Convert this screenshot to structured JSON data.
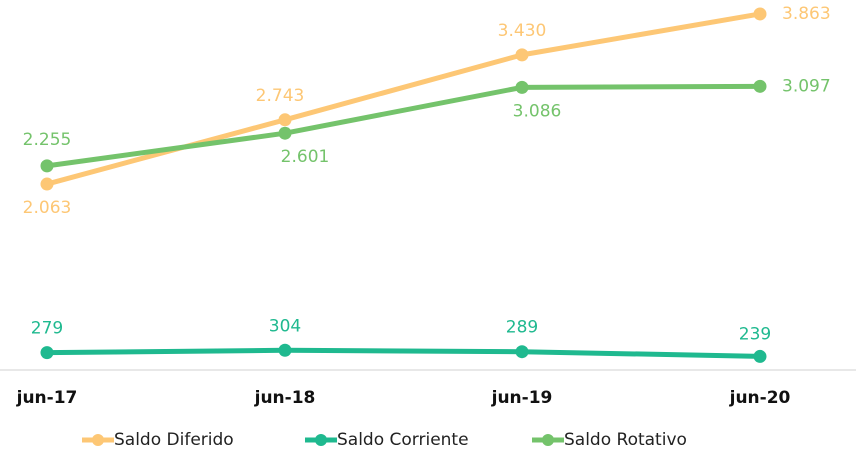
{
  "chart_data": {
    "type": "line",
    "categories": [
      "jun-17",
      "jun-18",
      "jun-19",
      "jun-20"
    ],
    "ylim": [
      0,
      4000
    ],
    "series": [
      {
        "name": "Saldo Diferido",
        "color": "#fdc775",
        "values": [
          2063,
          2743,
          3430,
          3863
        ],
        "value_labels": [
          "2.063",
          "2.743",
          "3.430",
          "3.863"
        ]
      },
      {
        "name": "Saldo Corriente",
        "color": "#1fb98f",
        "values": [
          279,
          304,
          289,
          239
        ],
        "value_labels": [
          "279",
          "304",
          "289",
          "239"
        ]
      },
      {
        "name": "Saldo Rotativo",
        "color": "#74c36b",
        "values": [
          2255,
          2601,
          3086,
          3097
        ],
        "value_labels": [
          "2.255",
          "2.601",
          "3.086",
          "3.097"
        ]
      }
    ]
  }
}
